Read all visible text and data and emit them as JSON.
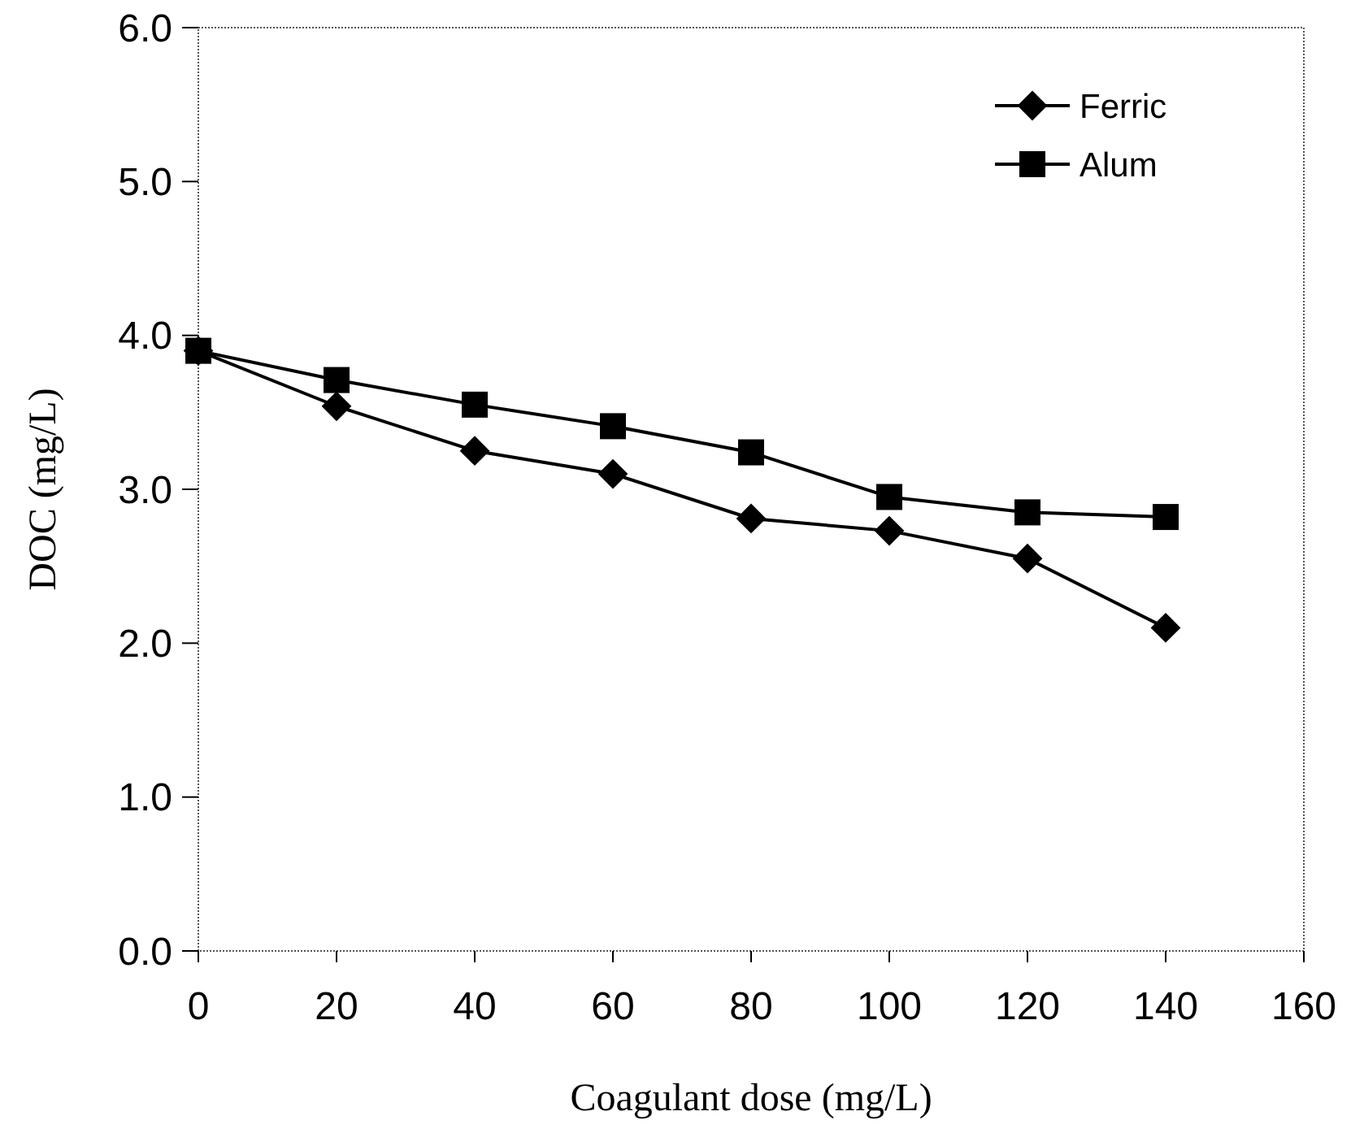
{
  "chart_data": {
    "type": "line",
    "xlabel": "Coagulant dose (mg/L)",
    "ylabel": "DOC (mg/L)",
    "xlim": [
      0,
      160
    ],
    "xticks": [
      0,
      20,
      40,
      60,
      80,
      100,
      120,
      140,
      160
    ],
    "ylim": [
      0,
      6
    ],
    "yticks": [
      {
        "value": 0,
        "label": "0.0"
      },
      {
        "value": 1,
        "label": "1.0"
      },
      {
        "value": 2,
        "label": "2.0"
      },
      {
        "value": 3,
        "label": "3.0"
      },
      {
        "value": 4,
        "label": "4.0"
      },
      {
        "value": 5,
        "label": "5.0"
      },
      {
        "value": 6,
        "label": "6.0"
      }
    ],
    "x": [
      0,
      20,
      40,
      60,
      80,
      100,
      120,
      140
    ],
    "legend": "top right",
    "grid": false,
    "series": [
      {
        "name": "Ferric",
        "color": "#000000",
        "marker": "diamond",
        "values": [
          3.9,
          3.54,
          3.25,
          3.1,
          2.81,
          2.73,
          2.55,
          2.1
        ]
      },
      {
        "name": "Alum",
        "color": "#000000",
        "marker": "square",
        "values": [
          3.9,
          3.71,
          3.55,
          3.41,
          3.24,
          2.95,
          2.85,
          2.82
        ]
      }
    ]
  }
}
